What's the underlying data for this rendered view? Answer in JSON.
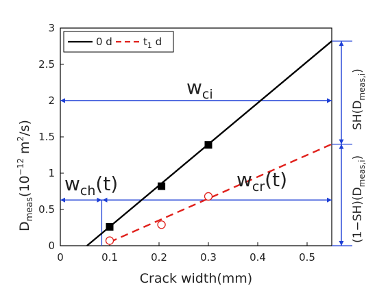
{
  "chart_data": {
    "type": "line",
    "xlabel": "Crack width(mm)",
    "ylabel_main": "D",
    "ylabel_sub": "meas",
    "ylabel_unit_pre": "(10",
    "ylabel_unit_exp": "−12",
    "ylabel_unit_mid": " m",
    "ylabel_unit_exp2": "2",
    "ylabel_unit_post": "/s)",
    "xlim": [
      0,
      0.55
    ],
    "ylim": [
      0,
      3
    ],
    "x_ticks": [
      "0",
      "0.1",
      "0.2",
      "0.3",
      "0.4",
      "0.5"
    ],
    "x_tick_values": [
      0,
      0.1,
      0.2,
      0.3,
      0.4,
      0.5
    ],
    "y_ticks": [
      "0",
      "0.5",
      "1",
      "1.5",
      "2",
      "2.5",
      "3"
    ],
    "y_tick_values": [
      0,
      0.5,
      1,
      1.5,
      2,
      2.5,
      3
    ],
    "legend_position": "top-left",
    "series": [
      {
        "name": "0 d",
        "color": "#000000",
        "dash": "solid",
        "marker": "filled-square",
        "x": [
          0.1,
          0.205,
          0.3
        ],
        "y": [
          0.26,
          0.82,
          1.39
        ],
        "fit_line": {
          "x": [
            0.054,
            0.55
          ],
          "y": [
            0,
            2.82
          ]
        }
      },
      {
        "name_main": "t",
        "name_sub": "1",
        "name_post": " d",
        "color": "#e0201b",
        "dash": "dashed",
        "marker": "open-circle",
        "x": [
          0.1,
          0.205,
          0.3
        ],
        "y": [
          0.07,
          0.29,
          0.68
        ],
        "fit_line": {
          "x": [
            0.1,
            0.55
          ],
          "y": [
            0.05,
            1.4
          ]
        }
      }
    ],
    "annotations": {
      "wci": {
        "main": "w",
        "sub": "ci"
      },
      "wch": {
        "main": "w",
        "sub": "ch",
        "post": "(t)"
      },
      "wcr": {
        "main": "w",
        "sub": "cr",
        "post": "(t)"
      },
      "sh_upper": {
        "pre": "SH(D",
        "sub": "meas,i",
        "post": ")"
      },
      "sh_lower": {
        "pre": "(1−SH)(D",
        "sub": "meas,i",
        "post": ")"
      }
    },
    "reference_color": "#1d3fd6"
  }
}
